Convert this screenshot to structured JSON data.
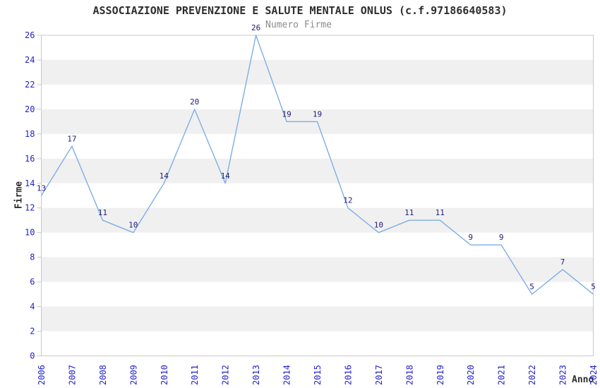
{
  "chart_data": {
    "type": "line",
    "title": "ASSOCIAZIONE PREVENZIONE E SALUTE MENTALE ONLUS (c.f.97186640583)",
    "series_label": "Numero Firme",
    "xlabel": "Anno",
    "ylabel": "Firme",
    "x": [
      "2006",
      "2007",
      "2008",
      "2009",
      "2010",
      "2011",
      "2012",
      "2013",
      "2014",
      "2015",
      "2016",
      "2017",
      "2018",
      "2019",
      "2020",
      "2021",
      "2022",
      "2023",
      "2024"
    ],
    "values": [
      13,
      17,
      11,
      10,
      14,
      20,
      14,
      26,
      19,
      19,
      12,
      10,
      11,
      11,
      9,
      9,
      5,
      7,
      5
    ],
    "ylim": [
      0,
      26
    ],
    "ytick_step": 2,
    "legend_position": "top-center",
    "grid": "alternating-horizontal-bands",
    "point_labels_visible": true,
    "colors": {
      "line": "#7dafe4",
      "tick_label": "#2222cc",
      "point_label": "#20207a",
      "band": "#f0f0f0",
      "border": "#c9c9c9",
      "title": "#2e2e2e",
      "subtitle": "#8c8c8c"
    }
  }
}
